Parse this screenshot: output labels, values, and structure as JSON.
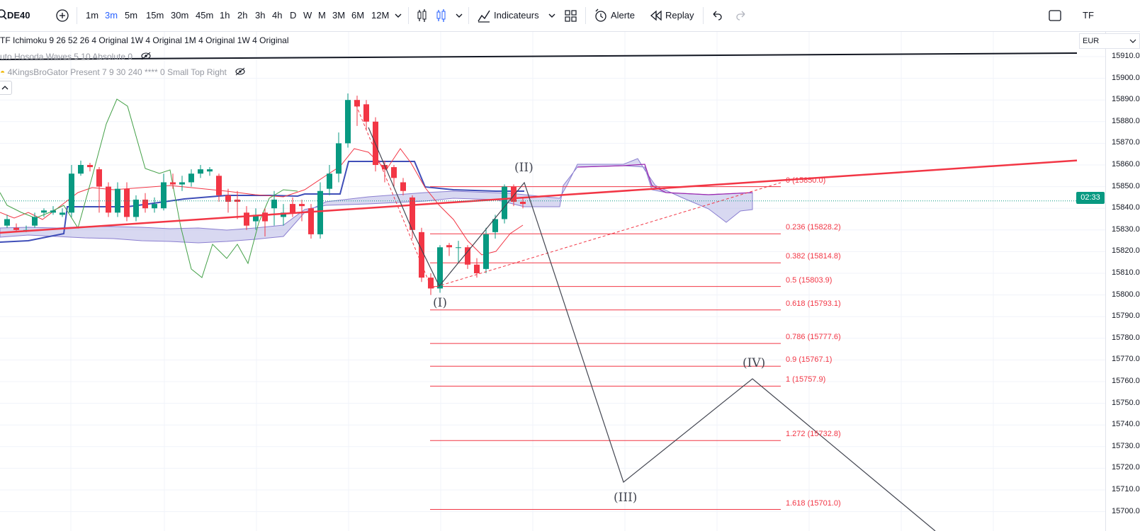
{
  "symbol": "DE40",
  "timeframes": [
    "1m",
    "3m",
    "5m",
    "15m",
    "30m",
    "45m",
    "1h",
    "2h",
    "3h",
    "4h",
    "D",
    "W",
    "M",
    "3M",
    "6M",
    "12M"
  ],
  "active_timeframe": "3m",
  "toolbar": {
    "indicators_label": "Indicateurs",
    "alert_label": "Alerte",
    "replay_label": "Replay",
    "right_label": "TF"
  },
  "legends": {
    "ichimoku": "TF Ichimoku 9 26 52 26 4 Original 1W 4 Original 1M 4 Original 1W 4 Original",
    "hosoda": "uto Hosoda Waves 5 10 Absolute 0",
    "gator": "4KingsBroGator Present 7 9 30 240 **** 0 Small Top Right"
  },
  "price_scale": {
    "currency": "EUR",
    "ticks": [
      "15910.0",
      "15900.0",
      "15890.0",
      "15880.0",
      "15870.0",
      "15860.0",
      "15850.0",
      "15840.0",
      "15830.0",
      "15820.0",
      "15810.0",
      "15800.0",
      "15790.0",
      "15780.0",
      "15770.0",
      "15760.0",
      "15750.0",
      "15740.0",
      "15730.0",
      "15720.0",
      "15710.0",
      "15700.0"
    ],
    "countdown": "02:33"
  },
  "fib_levels": [
    "0 (15850.0)",
    "0.236 (15828.2)",
    "0.382 (15814.8)",
    "0.5 (15803.9)",
    "0.618 (15793.1)",
    "0.786 (15777.6)",
    "0.9 (15767.1)",
    "1 (15757.9)",
    "1.272 (15732.8)",
    "1.618 (15701.0)"
  ],
  "wave_labels": [
    "(I)",
    "(II)",
    "(III)",
    "(IV)"
  ],
  "colors": {
    "up": "#089981",
    "down": "#f23645",
    "accent": "#2962ff",
    "trend": "#f23645",
    "kumo": "#b8b8e6"
  }
}
